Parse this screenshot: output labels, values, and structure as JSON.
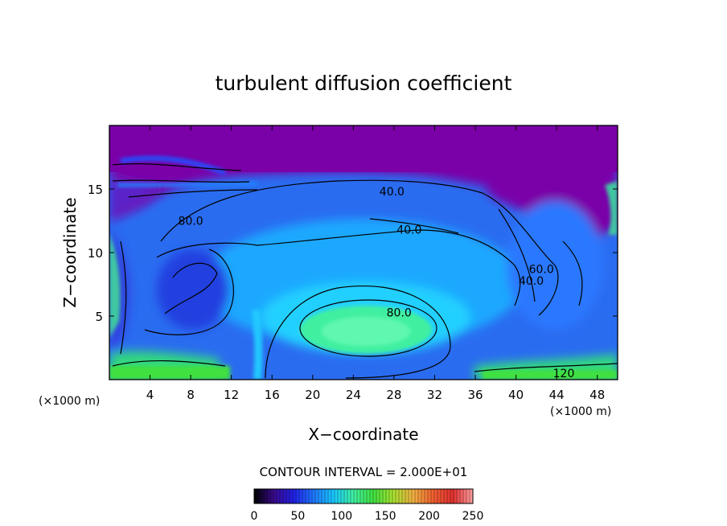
{
  "chart_data": {
    "type": "heatmap",
    "title": "turbulent diffusion coefficient",
    "xlabel": "X−coordinate",
    "ylabel": "Z−coordinate",
    "x_unit": "(×1000 m)",
    "y_unit": "(×1000 m)",
    "xlim": [
      0,
      50
    ],
    "ylim": [
      0,
      20
    ],
    "x_ticks": [
      4,
      8,
      12,
      16,
      20,
      24,
      28,
      32,
      36,
      40,
      44,
      48
    ],
    "y_ticks": [
      5,
      10,
      15
    ],
    "contour_interval_text": "CONTOUR INTERVAL = 2.000E+01",
    "colorbar": {
      "range": [
        0,
        250
      ],
      "ticks": [
        0,
        50,
        100,
        150,
        200,
        250
      ],
      "colors": [
        "#000000",
        "#3a0a8c",
        "#2020e6",
        "#1e78ff",
        "#18c8ff",
        "#40f0a0",
        "#40e040",
        "#a8e030",
        "#f0b040",
        "#f06030",
        "#e03030",
        "#ffa0a0"
      ]
    },
    "background_value_color": "#7a00a8",
    "contour_labels": [
      {
        "text": "40.0",
        "x": 27.8,
        "z": 14.8
      },
      {
        "text": "40.0",
        "x": 29.5,
        "z": 11.8
      },
      {
        "text": "80.0",
        "x": 28.5,
        "z": 5.3
      },
      {
        "text": "60.0",
        "x": 42.5,
        "z": 8.7
      },
      {
        "text": "40.0",
        "x": 41.5,
        "z": 7.8
      },
      {
        "text": "120",
        "x": 44.7,
        "z": 0.5
      },
      {
        "text": "80.0",
        "x": 8.0,
        "z": 12.5
      }
    ]
  }
}
